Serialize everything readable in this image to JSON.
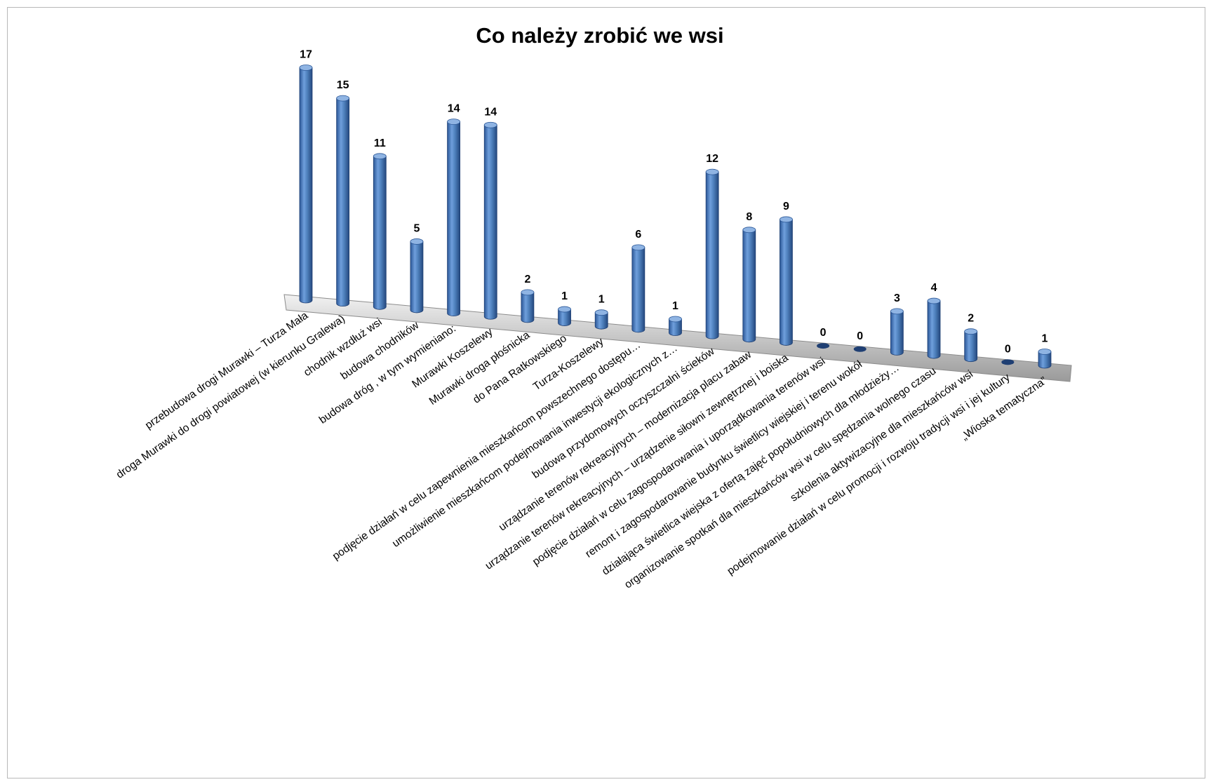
{
  "chart_data": {
    "type": "bar",
    "style": "3d-cylinder",
    "title": "Co należy zrobić we wsi",
    "xlabel": "",
    "ylabel": "",
    "ylim": [
      0,
      17
    ],
    "grid": false,
    "legend": "none",
    "bar_color": "#4f81bd",
    "categories": [
      "przebudowa drogi Murawki – Turza Mała",
      "droga Murawki do drogi powiatowej (w kierunku Gralewa)",
      "chodnik wzdłuż wsi",
      "budowa chodników",
      "budowa dróg ,  w tym wymieniano:",
      "Murawki Koszelewy",
      "Murawki droga płośnicka",
      "do Pana Ratkowskiego",
      "Turza-Koszelewy",
      "podjęcie działań w celu zapewnienia mieszkańcom powszechnego dostępu…",
      "umożliwienie mieszkańcom podejmowania inwestycji ekologicznych z…",
      "budowa przydomowych oczyszczalni ścieków",
      "urządzanie terenów rekreacyjnych – modernizacja placu zabaw",
      "urządzanie terenów rekreacyjnych – urządzenie siłowni zewnętrznej i boiska",
      "podjęcie działań w celu zagospodarowania i uporządkowania terenów wsi",
      "remont i zagospodarowanie budynku świetlicy wiejskiej i terenu wokół",
      "działająca świetlica wiejska z ofertą zajęć popołudniowych dla młodzieży…",
      "organizowanie spotkań dla mieszkańców wsi w celu spędzania wolnego czasu",
      "szkolenia aktywizacyjne dla mieszkańców wsi",
      "podejmowanie działań w celu promocji i rozwoju tradycji wsi i jej kultury",
      "„Wioska tematyczna”"
    ],
    "values": [
      17,
      15,
      11,
      5,
      14,
      14,
      2,
      1,
      1,
      6,
      1,
      12,
      8,
      9,
      0,
      0,
      3,
      4,
      2,
      0,
      1
    ]
  }
}
